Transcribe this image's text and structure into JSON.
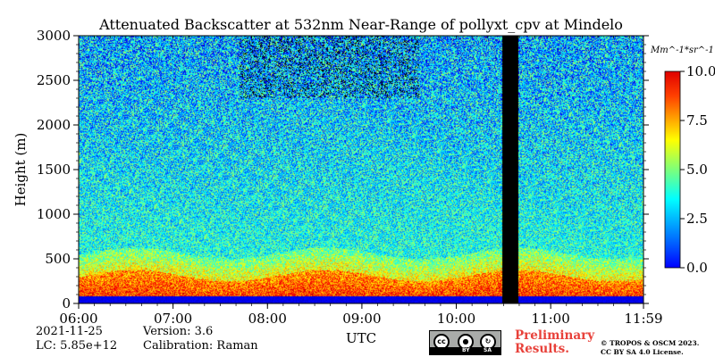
{
  "chart_data": {
    "type": "heatmap",
    "title": "Attenuated Backscatter at 532nm Near-Range of pollyxt_cpv at Mindelo",
    "xlabel": "UTC",
    "ylabel": "Height (m)",
    "x_range_hours": [
      6.0,
      11.983
    ],
    "ylim": [
      0,
      3000
    ],
    "x_ticks": [
      {
        "hour": 6.0,
        "label": "06:00"
      },
      {
        "hour": 7.0,
        "label": "07:00"
      },
      {
        "hour": 8.0,
        "label": "08:00"
      },
      {
        "hour": 9.0,
        "label": "09:00"
      },
      {
        "hour": 10.0,
        "label": "10:00"
      },
      {
        "hour": 11.0,
        "label": "11:00"
      },
      {
        "hour": 11.983,
        "label": "11:59"
      }
    ],
    "y_ticks": [
      0,
      500,
      1000,
      1500,
      2000,
      2500,
      3000
    ],
    "colorbar": {
      "unit_label": "Mm^-1*sr^-1",
      "range": [
        0.0,
        10.0
      ],
      "ticks": [
        {
          "value": 0.0,
          "label": "0.0"
        },
        {
          "value": 2.5,
          "label": "2.5"
        },
        {
          "value": 5.0,
          "label": "5.0"
        },
        {
          "value": 7.5,
          "label": "7.5"
        },
        {
          "value": 10.0,
          "label": "10.0"
        }
      ],
      "colormap": "jet"
    },
    "features": {
      "near_surface_blue_layer_m": [
        0,
        80
      ],
      "aerosol_layer_top_m": [
        250,
        380
      ],
      "aerosol_layer_value": 8.5,
      "background_value_low": 4.0,
      "background_value_high": 3.0,
      "noisy_region_above_m": 2300,
      "data_gap_hours": [
        10.48,
        10.65
      ]
    }
  },
  "meta": {
    "date": "2021-11-25",
    "lc": "LC: 5.85e+12",
    "version": "Version: 3.6",
    "calibration": "Calibration: Raman"
  },
  "logo": {
    "cc_text": "cc",
    "by": "BY",
    "sa": "SA"
  },
  "notice": {
    "line1": "Preliminary",
    "line2": "Results."
  },
  "copyright": {
    "line1": "© TROPOS & OSCM 2023.",
    "line2": "CC BY SA 4.0 License."
  }
}
